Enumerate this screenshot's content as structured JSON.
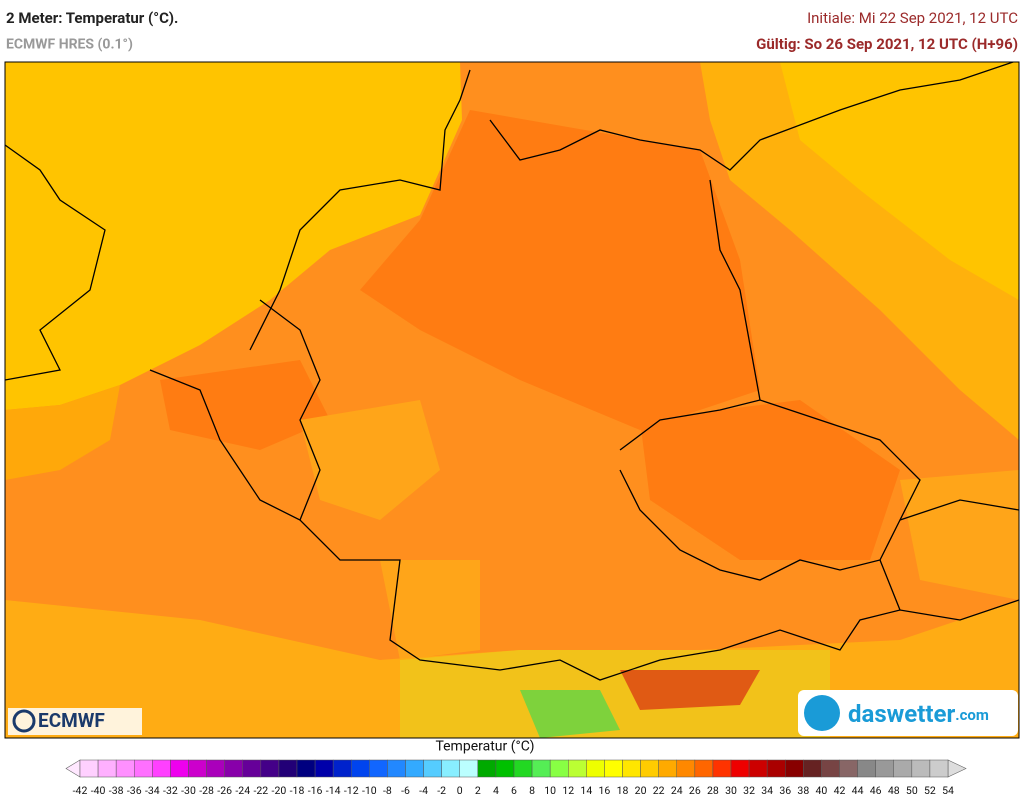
{
  "header": {
    "title": "2 Meter: Temperatur (°C).",
    "subtitle": "ECMWF HRES (0.1°)",
    "initial": "Initiale: Mi 22 Sep 2021, 12 UTC",
    "valid": "Gültig: So 26 Sep 2021, 12 UTC (H+96)"
  },
  "logos": {
    "left": "ECMWF",
    "right_main": "daswetter",
    "right_suffix": ".com"
  },
  "legend": {
    "title": "Temperatur (°C)",
    "ticks": [
      -42,
      -40,
      -38,
      -36,
      -34,
      -32,
      -30,
      -28,
      -26,
      -24,
      -22,
      -20,
      -18,
      -16,
      -14,
      -12,
      -10,
      -8,
      -6,
      -4,
      -2,
      0,
      2,
      4,
      6,
      8,
      10,
      12,
      14,
      16,
      18,
      20,
      22,
      24,
      26,
      28,
      30,
      32,
      34,
      36,
      38,
      40,
      42,
      44,
      46,
      48,
      50,
      52,
      54
    ],
    "colors": [
      "#ffd0ff",
      "#ffb0ff",
      "#ff90ff",
      "#ff70ff",
      "#ff40ff",
      "#ee00ee",
      "#cc00cc",
      "#aa00bb",
      "#8800aa",
      "#660099",
      "#440088",
      "#220077",
      "#000080",
      "#0000aa",
      "#0022cc",
      "#0044ee",
      "#1166ff",
      "#2288ff",
      "#33aaff",
      "#55ccff",
      "#88eeff",
      "#bbffff",
      "#00aa00",
      "#00c000",
      "#22d822",
      "#55ee55",
      "#88ff44",
      "#bbff33",
      "#eeff00",
      "#ffff00",
      "#ffe600",
      "#ffcc00",
      "#ffaa00",
      "#ff8800",
      "#ff6600",
      "#ff3300",
      "#ee0000",
      "#cc0000",
      "#aa0000",
      "#880000",
      "#662222",
      "#774444",
      "#886666",
      "#888888",
      "#999999",
      "#aaaaaa",
      "#bbbbbb",
      "#cccccc"
    ],
    "low_color": "#ffe8ff",
    "high_color": "#dddddd"
  }
}
